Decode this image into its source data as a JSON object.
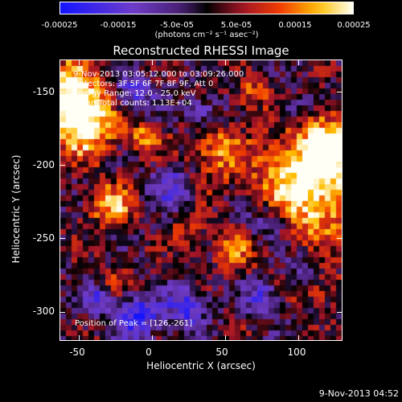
{
  "colorbar": {
    "ticks": [
      "-0.00025",
      "-0.00015",
      "-5.0e-05",
      "5.0e-05",
      "0.00015",
      "0.00025"
    ],
    "units": "(photons cm⁻² s⁻¹ asec⁻²)",
    "min": -0.00025,
    "max": 0.00025
  },
  "title": "Reconstructed RHESSI Image",
  "annotations": {
    "time": "9-Nov-2013 03:05:12.000 to 03:09:26.000",
    "detectors": "Detectors: 3F 5F 6F 7F 8F 9F, Att 0",
    "energy": "Energy Range: 12.0 - 25.0 keV",
    "clean": "Clean     Total counts: 1.13E+04",
    "peak": "Position of Peak = [126,-261]"
  },
  "axes": {
    "xlabel": "Heliocentric X (arcsec)",
    "ylabel": "Heliocentric Y (arcsec)",
    "xlim": [
      -63,
      130
    ],
    "ylim": [
      -320,
      -128
    ],
    "xticks": [
      "-50",
      "0",
      "50",
      "100"
    ],
    "xtick_values": [
      -50,
      0,
      50,
      100
    ],
    "yticks": [
      "-150",
      "-200",
      "-250",
      "-300"
    ],
    "ytick_values": [
      -150,
      -200,
      -250,
      -300
    ]
  },
  "footer": {
    "date": "9-Nov-2013 04:52"
  }
}
